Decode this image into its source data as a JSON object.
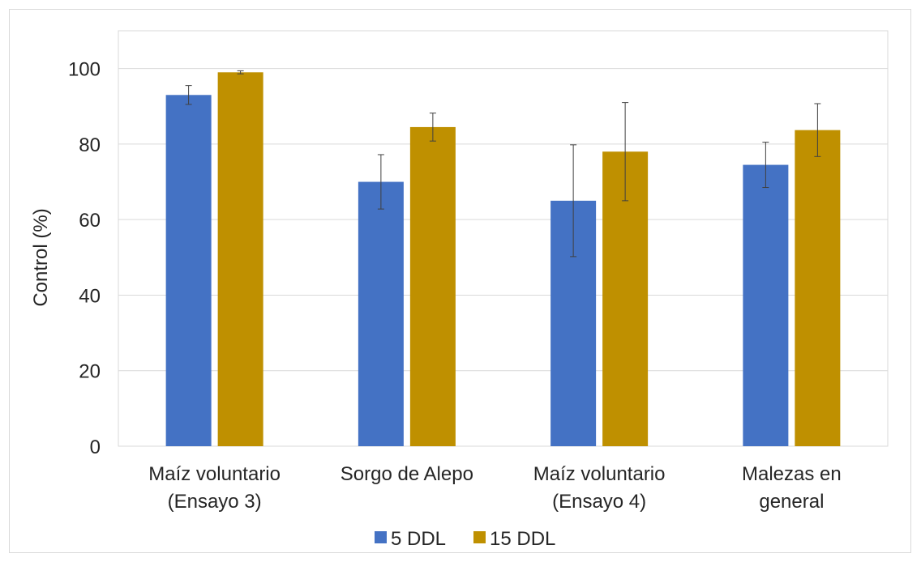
{
  "chart_data": {
    "type": "bar",
    "title": "",
    "xlabel": "",
    "ylabel": "Control (%)",
    "ylim": [
      0,
      110
    ],
    "yticks": [
      0,
      20,
      40,
      60,
      80,
      100
    ],
    "ytick_labels": [
      "0",
      "20",
      "40",
      "60",
      "80",
      "100"
    ],
    "grid": true,
    "legend_position": "bottom",
    "categories": [
      [
        "Maíz voluntario",
        "(Ensayo 3)"
      ],
      [
        "Sorgo de Alepo"
      ],
      [
        "Maíz voluntario",
        "(Ensayo 4)"
      ],
      [
        "Malezas en",
        "general"
      ]
    ],
    "series": [
      {
        "name": "5 DDL",
        "color": "#4472c4",
        "values": [
          93,
          70,
          65,
          74.5
        ],
        "error": [
          2.5,
          7.2,
          14.8,
          6
        ]
      },
      {
        "name": "15 DDL",
        "color": "#bf9000",
        "values": [
          99,
          84.5,
          78,
          83.7
        ],
        "error": [
          0.4,
          3.7,
          13,
          7
        ]
      }
    ]
  }
}
